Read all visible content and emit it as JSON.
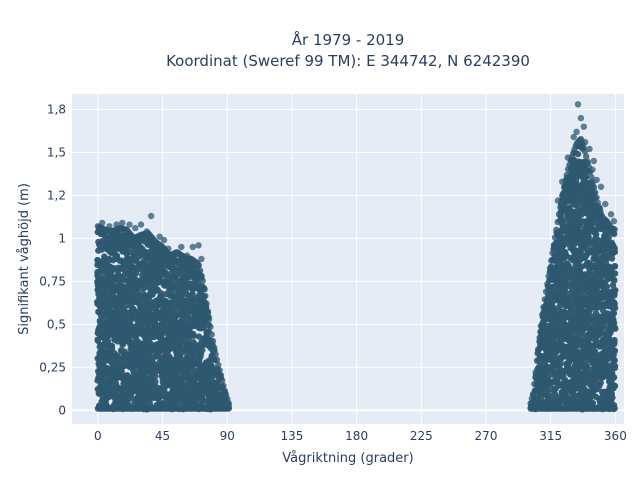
{
  "chart_data": {
    "type": "scatter",
    "title_lines": [
      "År 1979 - 2019",
      "Koordinat (Sweref 99 TM): E 344742, N 6242390"
    ],
    "xlabel": "Vågriktning (grader)",
    "ylabel": "Signifikant våghöjd (m)",
    "xlim": [
      -18,
      366
    ],
    "ylim": [
      -0.08,
      1.84
    ],
    "x_ticks": [
      0,
      45,
      90,
      135,
      180,
      225,
      270,
      315,
      360
    ],
    "x_tick_labels": [
      "0",
      "45",
      "90",
      "135",
      "180",
      "225",
      "270",
      "315",
      "360"
    ],
    "y_ticks": [
      0,
      0.25,
      0.5,
      0.75,
      1,
      1.25,
      1.5,
      1.75
    ],
    "y_tick_labels": [
      "0",
      "0,25",
      "0,5",
      "0,75",
      "1",
      "1,2",
      "1,5",
      "1,8"
    ],
    "grid": true,
    "marker_color": "#2e5870",
    "plot_background": "#e5ecf6",
    "clusters": [
      {
        "envelope": [
          [
            0,
            1.07
          ],
          [
            5,
            1.05
          ],
          [
            10,
            1.04
          ],
          [
            15,
            1.06
          ],
          [
            20,
            1.05
          ],
          [
            25,
            1.0
          ],
          [
            30,
            1.02
          ],
          [
            35,
            1.03
          ],
          [
            40,
            0.98
          ],
          [
            45,
            0.95
          ],
          [
            50,
            0.9
          ],
          [
            55,
            0.92
          ],
          [
            60,
            0.89
          ],
          [
            65,
            0.88
          ],
          [
            70,
            0.85
          ],
          [
            73,
            0.75
          ],
          [
            76,
            0.6
          ],
          [
            79,
            0.45
          ],
          [
            82,
            0.32
          ],
          [
            85,
            0.22
          ],
          [
            88,
            0.12
          ],
          [
            91,
            0.04
          ]
        ],
        "outliers": [
          [
            3,
            1.09
          ],
          [
            8,
            1.07
          ],
          [
            13,
            1.08
          ],
          [
            17,
            1.09
          ],
          [
            22,
            1.08
          ],
          [
            26,
            1.06
          ],
          [
            30,
            1.08
          ],
          [
            34,
            1.04
          ],
          [
            37,
            1.13
          ],
          [
            40,
            0.97
          ],
          [
            43,
            1.01
          ],
          [
            46,
            0.99
          ],
          [
            49,
            0.94
          ],
          [
            53,
            0.91
          ],
          [
            58,
            0.95
          ],
          [
            62,
            0.9
          ],
          [
            66,
            0.95
          ],
          [
            70,
            0.96
          ],
          [
            72,
            0.88
          ]
        ]
      },
      {
        "envelope": [
          [
            301,
            0.04
          ],
          [
            303,
            0.1
          ],
          [
            305,
            0.25
          ],
          [
            307,
            0.4
          ],
          [
            309,
            0.55
          ],
          [
            312,
            0.7
          ],
          [
            315,
            0.85
          ],
          [
            318,
            1.0
          ],
          [
            321,
            1.15
          ],
          [
            324,
            1.28
          ],
          [
            327,
            1.4
          ],
          [
            330,
            1.48
          ],
          [
            333,
            1.55
          ],
          [
            336,
            1.58
          ],
          [
            339,
            1.5
          ],
          [
            342,
            1.4
          ],
          [
            345,
            1.3
          ],
          [
            348,
            1.2
          ],
          [
            351,
            1.12
          ],
          [
            354,
            1.1
          ],
          [
            357,
            1.06
          ],
          [
            360,
            1.05
          ]
        ],
        "outliers": [
          [
            331,
            1.59
          ],
          [
            333,
            1.62
          ],
          [
            334,
            1.78
          ],
          [
            336,
            1.7
          ],
          [
            338,
            1.65
          ],
          [
            339,
            1.56
          ],
          [
            342,
            1.52
          ],
          [
            344,
            1.4
          ],
          [
            345,
            1.45
          ],
          [
            347,
            1.34
          ],
          [
            350,
            1.3
          ],
          [
            353,
            1.2
          ],
          [
            357,
            1.14
          ],
          [
            359,
            1.1
          ],
          [
            327,
            1.47
          ],
          [
            323,
            1.33
          ],
          [
            320,
            1.22
          ]
        ]
      }
    ]
  }
}
